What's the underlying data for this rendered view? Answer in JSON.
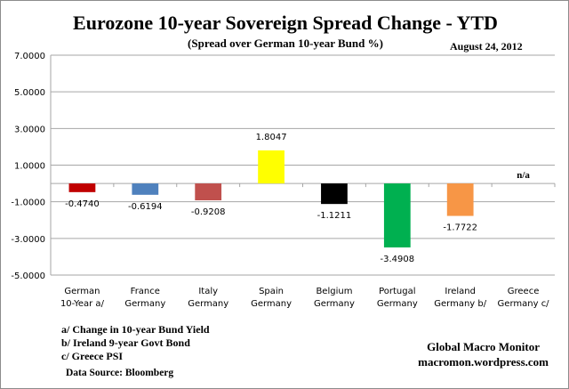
{
  "chart_data": {
    "type": "bar",
    "title": "Eurozone 10-year Sovereign Spread Change - YTD",
    "subtitle": "(Spread over German 10-year Bund %)",
    "date": "August 24,  2012",
    "categories": [
      [
        "German",
        "10-Year a/"
      ],
      [
        "France",
        "Germany"
      ],
      [
        "Italy",
        "Germany"
      ],
      [
        "Spain",
        "Germany"
      ],
      [
        "Belgium",
        "Germany"
      ],
      [
        "Portugal",
        "Germany"
      ],
      [
        "Ireland",
        "Germany b/"
      ],
      [
        "Greece",
        "Germany c/"
      ]
    ],
    "values": [
      -0.474,
      -0.6194,
      -0.9208,
      1.8047,
      -1.1211,
      -3.4908,
      -1.7722,
      null
    ],
    "data_labels": [
      "-0.4740",
      "-0.6194",
      "-0.9208",
      "1.8047",
      "-1.1211",
      "-3.4908",
      "-1.7722",
      "n/a"
    ],
    "colors": [
      "#c00000",
      "#4f81bd",
      "#c0504d",
      "#ffff00",
      "#000000",
      "#00b050",
      "#f79646",
      null
    ],
    "ylim": [
      -5,
      7
    ],
    "yticks": [
      7,
      5,
      3,
      1,
      -1,
      -3,
      -5
    ],
    "ytick_labels": [
      "7.0000",
      "5.0000",
      "3.0000",
      "1.0000",
      "-1.0000",
      "-3.0000",
      "-5.0000"
    ],
    "grid": true,
    "legend": "none"
  },
  "notes": [
    "a/  Change in 10-year Bund Yield",
    "b/  Ireland 9-year Govt Bond",
    "c/  Greece PSI"
  ],
  "source": "Data Source:  Bloomberg",
  "credit": {
    "name": "Global Macro Monitor",
    "site": "macromon.wordpress.com"
  }
}
